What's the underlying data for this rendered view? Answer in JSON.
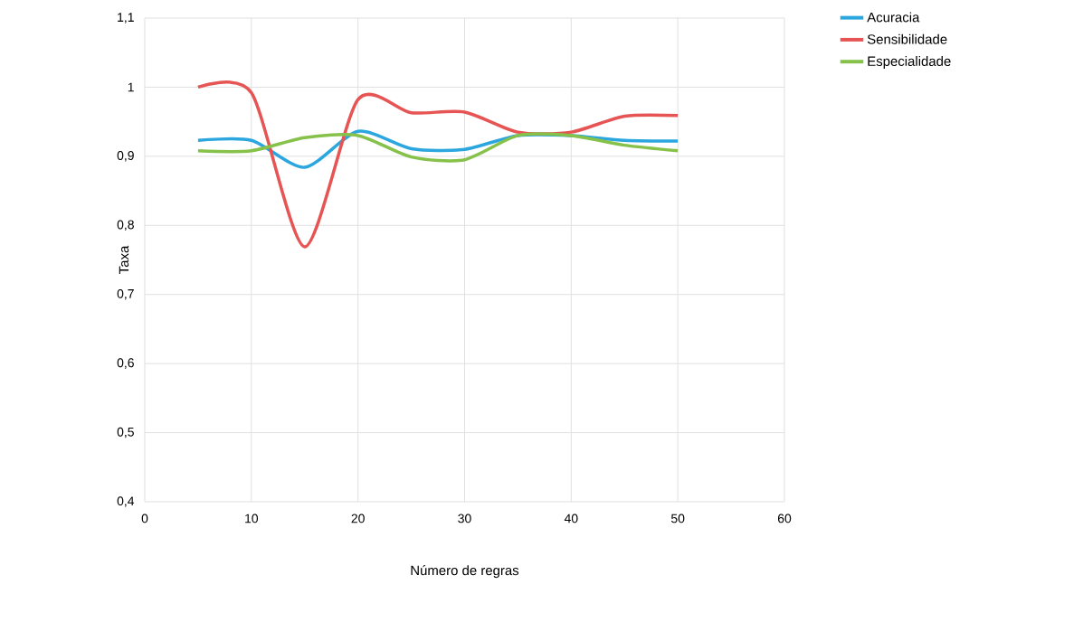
{
  "chart_data": {
    "type": "line",
    "xlabel": "Número de regras",
    "ylabel": "Taxa",
    "x": [
      5,
      10,
      15,
      20,
      25,
      30,
      35,
      40,
      45,
      50
    ],
    "series": [
      {
        "name": "Acuracia",
        "color": "#2ba6de",
        "values": [
          0.923,
          0.923,
          0.884,
          0.936,
          0.911,
          0.91,
          0.93,
          0.93,
          0.923,
          0.922
        ]
      },
      {
        "name": "Sensibilidade",
        "color": "#e65454",
        "values": [
          1.0,
          0.992,
          0.769,
          0.982,
          0.963,
          0.964,
          0.935,
          0.935,
          0.958,
          0.959
        ]
      },
      {
        "name": "Especialidade",
        "color": "#86c14a",
        "values": [
          0.908,
          0.908,
          0.927,
          0.93,
          0.899,
          0.895,
          0.93,
          0.93,
          0.916,
          0.908
        ]
      }
    ],
    "xlim": [
      0,
      60
    ],
    "xticks": [
      0,
      10,
      20,
      30,
      40,
      50,
      60
    ],
    "ylim": [
      0.4,
      1.1
    ],
    "yticks": [
      {
        "value": 0.4,
        "label": "0,4"
      },
      {
        "value": 0.5,
        "label": "0,5"
      },
      {
        "value": 0.6,
        "label": "0,6"
      },
      {
        "value": 0.7,
        "label": "0,7"
      },
      {
        "value": 0.8,
        "label": "0,8"
      },
      {
        "value": 0.9,
        "label": "0,9"
      },
      1,
      {
        "value": 1.1,
        "label": "1,1"
      }
    ],
    "grid": true,
    "legend": "top right",
    "line_style": "solid"
  }
}
